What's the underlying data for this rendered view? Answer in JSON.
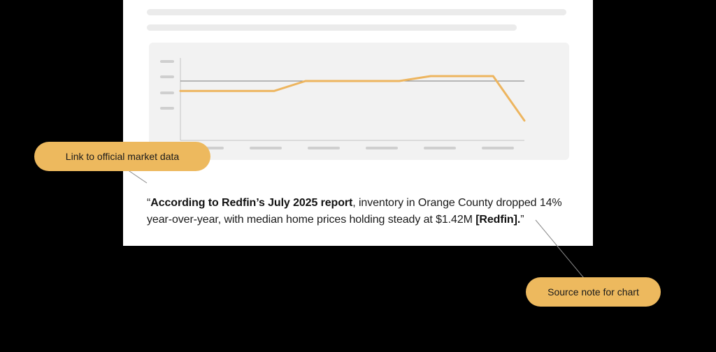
{
  "quote": {
    "open_mark": "“",
    "bold_lead": "According to Redfin’s July 2025 report",
    "middle": ", inventory in Orange County dropped 14% year-over-year, with median home prices holding steady at $1.42M ",
    "bold_source": "[Redfin].",
    "close_mark": "”"
  },
  "callouts": {
    "link_label": "Link to official market data",
    "source_label": "Source note for chart"
  },
  "colors": {
    "accent": "#EDB95E",
    "line": "#EDB55F",
    "background": "#000000",
    "card": "#FFFFFF",
    "panel": "#F2F2F2"
  },
  "chart_data": {
    "type": "line",
    "title": "",
    "xlabel": "",
    "ylabel": "",
    "x": [
      0,
      1,
      2,
      3,
      4,
      5,
      6,
      7,
      8,
      9,
      10,
      11
    ],
    "series": [
      {
        "values": [
          3.0,
          3.0,
          3.0,
          3.0,
          3.6,
          3.6,
          3.6,
          3.6,
          3.9,
          3.9,
          3.9,
          1.2
        ]
      }
    ],
    "reference_line": 3.6,
    "ylim": [
      0,
      5
    ],
    "tick_labels_shown": false,
    "grid": false
  }
}
